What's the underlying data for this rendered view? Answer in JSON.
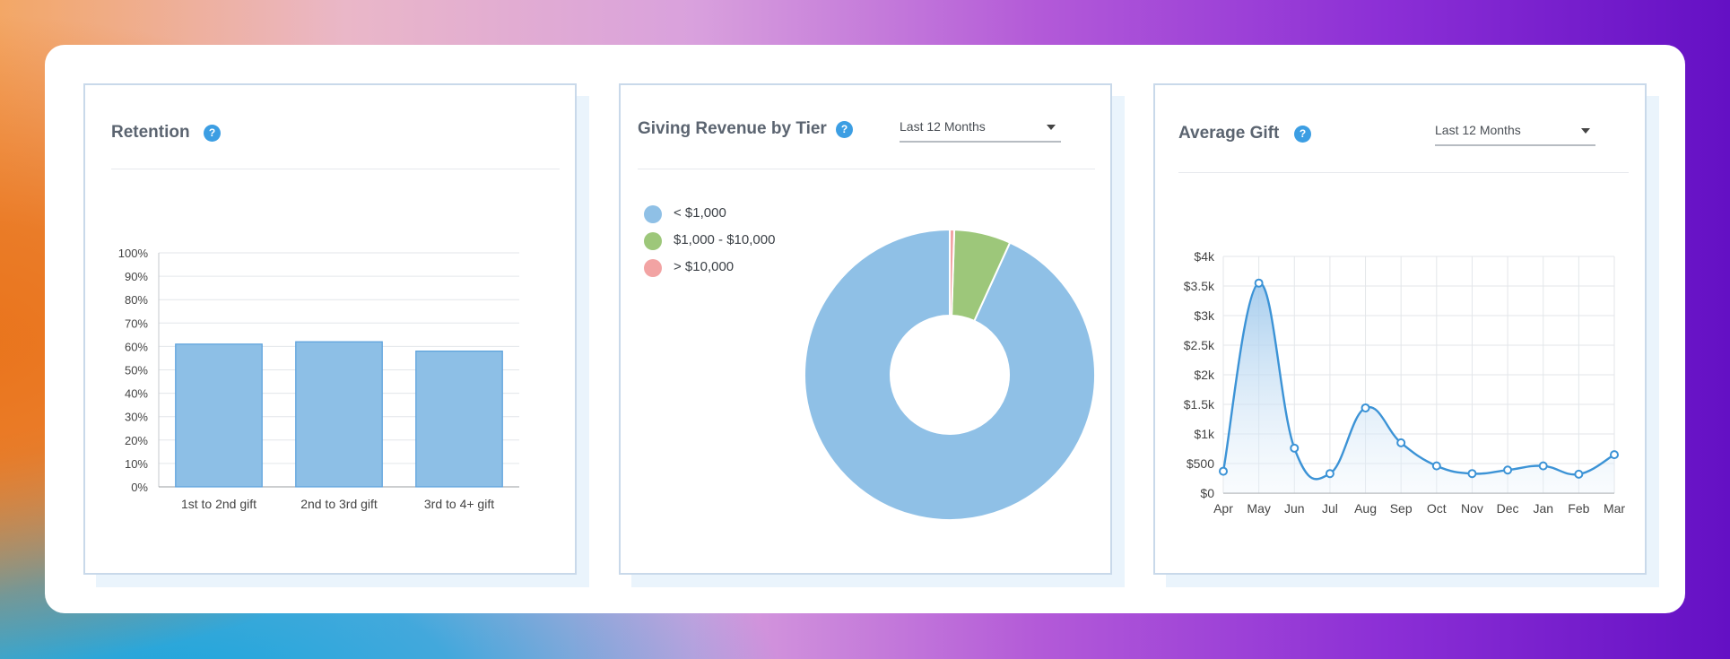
{
  "colors": {
    "bar_fill": "#8dbfe6",
    "bar_stroke": "#5aa0dc",
    "pie_tier1": "#8fc0e6",
    "pie_tier2": "#9dc77a",
    "pie_tier3": "#f2a3a3",
    "line": "#3c93d6",
    "help": "#3c9ee3"
  },
  "cards": {
    "retention": {
      "title": "Retention",
      "help": "?"
    },
    "revenue": {
      "title": "Giving Revenue by Tier",
      "help": "?",
      "dropdown": "Last 12 Months"
    },
    "average": {
      "title": "Average Gift",
      "help": "?",
      "dropdown": "Last 12 Months"
    }
  },
  "chart_data": [
    {
      "type": "bar",
      "title": "Retention",
      "categories": [
        "1st to 2nd gift",
        "2nd to 3rd gift",
        "3rd to 4+ gift"
      ],
      "values": [
        61,
        62,
        58
      ],
      "ylim": [
        0,
        100
      ],
      "yticks": [
        "0%",
        "10%",
        "20%",
        "30%",
        "40%",
        "50%",
        "60%",
        "70%",
        "80%",
        "90%",
        "100%"
      ],
      "grid": true
    },
    {
      "type": "pie",
      "title": "Giving Revenue by Tier",
      "legend_position": "top-left",
      "labels": [
        "< $1,000",
        "$1,000 - $10,000",
        "> $10,000"
      ],
      "values": [
        93.2,
        6.3,
        0.5
      ],
      "donut": true
    },
    {
      "type": "area",
      "title": "Average Gift",
      "categories": [
        "Apr",
        "May",
        "Jun",
        "Jul",
        "Aug",
        "Sep",
        "Oct",
        "Nov",
        "Dec",
        "Jan",
        "Feb",
        "Mar"
      ],
      "values": [
        370,
        3550,
        760,
        330,
        1440,
        850,
        460,
        330,
        390,
        460,
        320,
        650
      ],
      "ylim": [
        0,
        4000
      ],
      "yticks": [
        "$0",
        "$500",
        "$1k",
        "$1.5k",
        "$2k",
        "$2.5k",
        "$3k",
        "$3.5k",
        "$4k"
      ],
      "grid": true
    }
  ]
}
